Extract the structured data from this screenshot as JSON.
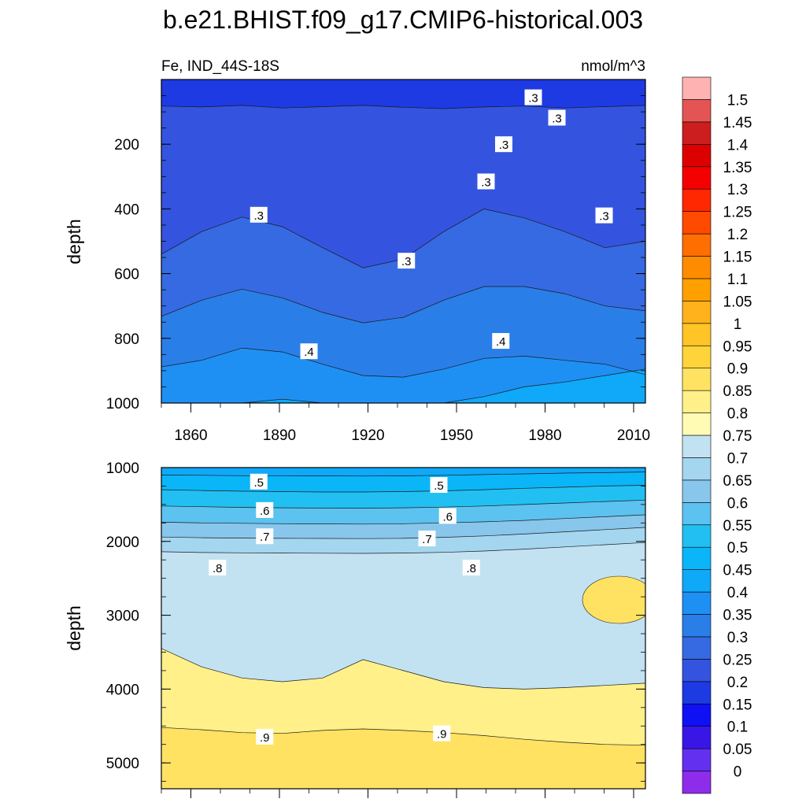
{
  "title": "b.e21.BHIST.f09_g17.CMIP6-historical.003",
  "subtitle_left": "Fe, IND_44S-18S",
  "subtitle_right": "nmol/m^3",
  "chart_data": [
    {
      "type": "heatmap",
      "name": "upper-panel",
      "xlabel": "",
      "ylabel": "depth",
      "xlim": [
        1850,
        2014
      ],
      "ylim": [
        0,
        1000
      ],
      "y_inverted": true,
      "x_ticks": [
        "1860",
        "1890",
        "1920",
        "1950",
        "1980",
        "2010"
      ],
      "x_tick_values": [
        1860,
        1890,
        1920,
        1950,
        1980,
        2010
      ],
      "y_ticks": [
        "200",
        "400",
        "600",
        "800",
        "1000"
      ],
      "y_tick_values": [
        200,
        400,
        600,
        800,
        1000
      ],
      "contour_labels": [
        {
          "text": ".3",
          "x": 1976,
          "y": 55
        },
        {
          "text": ".3",
          "x": 1984,
          "y": 118
        },
        {
          "text": ".3",
          "x": 1966,
          "y": 200
        },
        {
          "text": ".3",
          "x": 1960,
          "y": 315
        },
        {
          "text": ".3",
          "x": 1883,
          "y": 418
        },
        {
          "text": ".3",
          "x": 1933,
          "y": 560
        },
        {
          "text": ".3",
          "x": 2000,
          "y": 420
        },
        {
          "text": ".4",
          "x": 1900,
          "y": 840
        },
        {
          "text": ".4",
          "x": 1965,
          "y": 808
        }
      ],
      "contours": [
        {
          "level": 0.25,
          "depths": [
            82,
            85,
            80,
            88,
            84,
            80,
            86,
            90,
            85,
            82,
            88,
            84,
            80
          ]
        },
        {
          "level": 0.3,
          "depths": [
            540,
            470,
            425,
            455,
            520,
            582,
            555,
            470,
            400,
            428,
            470,
            520,
            500
          ]
        },
        {
          "level": 0.35,
          "depths": [
            732,
            682,
            648,
            675,
            720,
            752,
            735,
            682,
            640,
            640,
            662,
            700,
            715
          ]
        },
        {
          "level": 0.4,
          "depths": [
            888,
            868,
            830,
            842,
            880,
            915,
            920,
            895,
            862,
            855,
            868,
            880,
            912
          ]
        },
        {
          "level": 0.45,
          "depths": [
            1000,
            1000,
            1000,
            988,
            1000,
            1000,
            1000,
            1000,
            980,
            950,
            935,
            915,
            895
          ]
        }
      ]
    },
    {
      "type": "heatmap",
      "name": "lower-panel",
      "xlabel": "",
      "ylabel": "depth",
      "xlim": [
        1850,
        2014
      ],
      "ylim": [
        1000,
        5350
      ],
      "y_inverted": true,
      "x_ticks": [],
      "y_ticks": [
        "1000",
        "2000",
        "3000",
        "4000",
        "5000"
      ],
      "y_tick_values": [
        1000,
        2000,
        3000,
        4000,
        5000
      ],
      "contour_labels": [
        {
          "text": ".5",
          "x": 1883,
          "y": 1190
        },
        {
          "text": ".5",
          "x": 1944,
          "y": 1235
        },
        {
          "text": ".6",
          "x": 1885,
          "y": 1575
        },
        {
          "text": ".6",
          "x": 1947,
          "y": 1655
        },
        {
          "text": ".7",
          "x": 1885,
          "y": 1930
        },
        {
          "text": ".7",
          "x": 1940,
          "y": 1960
        },
        {
          "text": ".8",
          "x": 1869,
          "y": 2355
        },
        {
          "text": ".8",
          "x": 1955,
          "y": 2355
        },
        {
          "text": ".9",
          "x": 1885,
          "y": 4645
        },
        {
          "text": ".9",
          "x": 1945,
          "y": 4600
        }
      ],
      "contours": [
        {
          "level": 0.5,
          "depths": [
            1100,
            1105,
            1110,
            1110,
            1112,
            1115,
            1112,
            1105,
            1095,
            1085,
            1075,
            1068,
            1060
          ]
        },
        {
          "level": 0.55,
          "depths": [
            1300,
            1310,
            1320,
            1325,
            1330,
            1330,
            1325,
            1315,
            1300,
            1280,
            1265,
            1250,
            1240
          ]
        },
        {
          "level": 0.6,
          "depths": [
            1520,
            1530,
            1540,
            1545,
            1548,
            1550,
            1545,
            1535,
            1520,
            1500,
            1480,
            1460,
            1440
          ]
        },
        {
          "level": 0.65,
          "depths": [
            1740,
            1750,
            1755,
            1760,
            1762,
            1765,
            1760,
            1750,
            1735,
            1715,
            1690,
            1665,
            1640
          ]
        },
        {
          "level": 0.7,
          "depths": [
            1940,
            1950,
            1955,
            1958,
            1960,
            1962,
            1958,
            1945,
            1925,
            1900,
            1870,
            1840,
            1810
          ]
        },
        {
          "level": 0.75,
          "depths": [
            2140,
            2150,
            2155,
            2158,
            2160,
            2162,
            2158,
            2148,
            2130,
            2105,
            2075,
            2045,
            2015
          ]
        },
        {
          "level": 0.85,
          "depths": [
            3450,
            3700,
            3850,
            3900,
            3850,
            3600,
            3750,
            3900,
            3980,
            4000,
            3980,
            3950,
            3920
          ]
        },
        {
          "level": 0.9,
          "depths": [
            4520,
            4550,
            4590,
            4600,
            4560,
            4540,
            4560,
            4590,
            4630,
            4680,
            4720,
            4750,
            4760
          ]
        }
      ]
    }
  ],
  "colorbar": {
    "labels": [
      "0",
      "0.05",
      "0.1",
      "0.15",
      "0.2",
      "0.25",
      "0.3",
      "0.35",
      "0.4",
      "0.45",
      "0.5",
      "0.55",
      "0.6",
      "0.65",
      "0.7",
      "0.75",
      "0.8",
      "0.85",
      "0.9",
      "0.95",
      "1",
      "1.05",
      "1.1",
      "1.15",
      "1.2",
      "1.25",
      "1.3",
      "1.35",
      "1.4",
      "1.45",
      "1.5"
    ],
    "colors": [
      "#8e2cec",
      "#6430f0",
      "#3a16e6",
      "#1010f4",
      "#1e3ae2",
      "#3454e0",
      "#366ae2",
      "#2a7ee8",
      "#1e90f4",
      "#10a8f8",
      "#0ab6f8",
      "#22c0f2",
      "#5cc2f0",
      "#88c6ec",
      "#a4d6f0",
      "#c2e2f2",
      "#fffbb4",
      "#fff08a",
      "#ffe262",
      "#ffd43a",
      "#ffc426",
      "#ffb21c",
      "#ffa000",
      "#ff8c00",
      "#ff6e00",
      "#ff4a00",
      "#ff2800",
      "#f40000",
      "#dc0000",
      "#cc1e1e",
      "#e45454",
      "#ffb2b2"
    ]
  }
}
